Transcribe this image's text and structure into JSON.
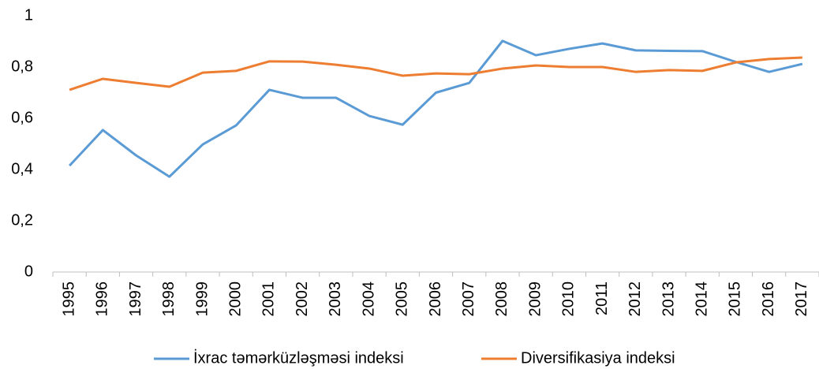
{
  "chart_data": {
    "type": "line",
    "categories": [
      "1995",
      "1996",
      "1997",
      "1998",
      "1999",
      "2000",
      "2001",
      "2002",
      "2003",
      "2004",
      "2005",
      "2006",
      "2007",
      "2008",
      "2009",
      "2010",
      "2011",
      "2012",
      "2013",
      "2014",
      "2015",
      "2016",
      "2017"
    ],
    "series": [
      {
        "name": "İxrac təmərküzləşməsi indeksi",
        "color": "#5b9bd5",
        "values": [
          0.415,
          0.554,
          0.455,
          0.372,
          0.498,
          0.572,
          0.711,
          0.68,
          0.68,
          0.609,
          0.575,
          0.7,
          0.738,
          0.902,
          0.846,
          0.871,
          0.892,
          0.865,
          0.863,
          0.862,
          0.82,
          0.781,
          0.812
        ]
      },
      {
        "name": "Diversifikasiya indeksi",
        "color": "#ed7d31",
        "values": [
          0.711,
          0.754,
          0.738,
          0.723,
          0.778,
          0.785,
          0.822,
          0.821,
          0.809,
          0.794,
          0.766,
          0.775,
          0.772,
          0.794,
          0.806,
          0.8,
          0.8,
          0.781,
          0.788,
          0.785,
          0.818,
          0.831,
          0.837
        ]
      }
    ],
    "ylim": [
      0,
      1
    ],
    "yticks": [
      0,
      {
        "value": 0.2,
        "label": "0,2"
      },
      {
        "value": 0.4,
        "label": "0,4"
      },
      {
        "value": 0.6,
        "label": "0,6"
      },
      {
        "value": 0.8,
        "label": "0,8"
      },
      1
    ],
    "grid": false,
    "legend": "bottom"
  }
}
